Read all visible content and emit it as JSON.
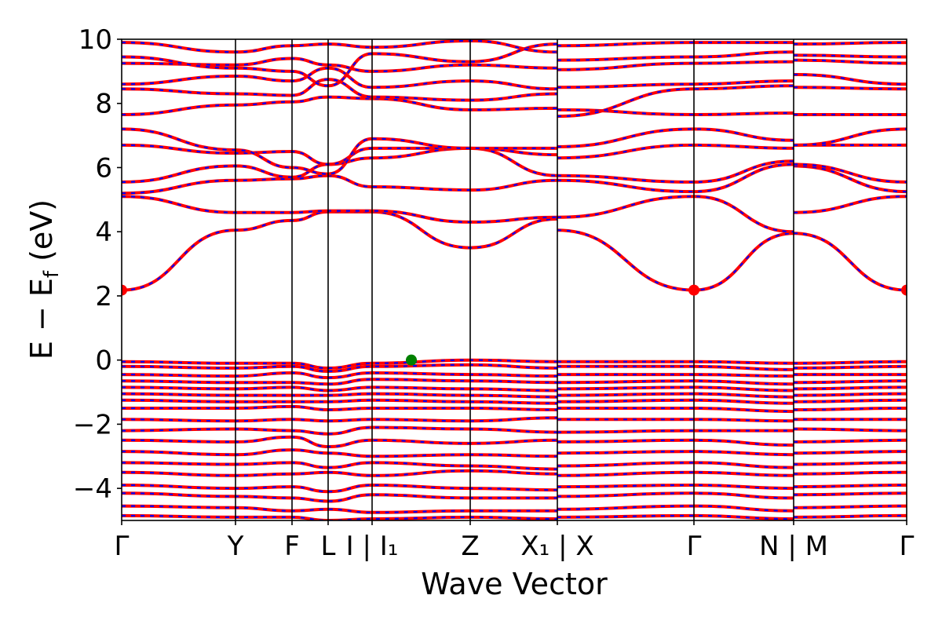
{
  "chart_data": {
    "type": "line",
    "title": "",
    "xlabel": "Wave Vector",
    "ylabel": "E − E",
    "ylabel_subscript": "f",
    "ylabel_unit": " (eV)",
    "ylim": [
      -5,
      10
    ],
    "yticks": [
      -4,
      -2,
      0,
      2,
      4,
      6,
      8,
      10
    ],
    "ytick_labels": [
      "−4",
      "−2",
      "0",
      "2",
      "4",
      "6",
      "8",
      "10"
    ],
    "kpath": [
      {
        "x": 0.0,
        "label": "Γ"
      },
      {
        "x": 0.145,
        "label": "Y"
      },
      {
        "x": 0.217,
        "label": "F"
      },
      {
        "x": 0.263,
        "label": "L"
      },
      {
        "x": 0.319,
        "label": "I | I₁"
      },
      {
        "x": 0.444,
        "label": "Z"
      },
      {
        "x": 0.555,
        "label": "X₁ | X"
      },
      {
        "x": 0.729,
        "label": "Γ"
      },
      {
        "x": 0.856,
        "label": "N | M"
      },
      {
        "x": 1.0,
        "label": "Γ"
      }
    ],
    "xlim": [
      0,
      1
    ],
    "series_colors": {
      "solid": "#ff0000",
      "dashed": "#0000ff"
    },
    "markers": [
      {
        "name": "CBM",
        "x": 0.0,
        "y": 2.18,
        "color": "#ff0000"
      },
      {
        "name": "CBM",
        "x": 0.729,
        "y": 2.18,
        "color": "#ff0000"
      },
      {
        "name": "CBM",
        "x": 1.0,
        "y": 2.18,
        "color": "#ff0000"
      },
      {
        "name": "VBM",
        "x": 0.369,
        "y": 0.0,
        "color": "#008000"
      }
    ],
    "bands": [
      {
        "x": [
          0,
          0.145,
          0.217,
          0.263,
          0.319,
          0.444,
          0.555,
          0.555,
          0.729,
          0.856,
          0.856,
          1.0
        ],
        "y": [
          2.18,
          4.05,
          4.35,
          4.62,
          4.62,
          3.5,
          4.4,
          4.05,
          2.18,
          3.95,
          3.95,
          2.18
        ]
      },
      {
        "x": [
          0,
          0.145,
          0.217,
          0.263,
          0.319,
          0.444,
          0.555,
          0.555,
          0.729,
          0.856,
          0.856,
          1.0
        ],
        "y": [
          5.1,
          4.6,
          4.6,
          4.65,
          4.65,
          4.3,
          4.45,
          4.45,
          5.1,
          4.0,
          4.6,
          5.1
        ]
      },
      {
        "x": [
          0,
          0.145,
          0.217,
          0.263,
          0.319,
          0.444,
          0.555,
          0.555,
          0.729,
          0.856,
          0.856,
          1.0
        ],
        "y": [
          5.2,
          5.6,
          5.65,
          5.75,
          5.4,
          5.3,
          5.6,
          5.6,
          5.25,
          6.1,
          6.05,
          5.25
        ]
      },
      {
        "x": [
          0,
          0.145,
          0.217,
          0.263,
          0.319,
          0.444,
          0.555,
          0.555,
          0.729,
          0.856,
          0.856,
          1.0
        ],
        "y": [
          5.55,
          6.05,
          5.7,
          6.1,
          6.3,
          6.6,
          5.75,
          5.75,
          5.55,
          6.2,
          6.1,
          5.55
        ]
      },
      {
        "x": [
          0,
          0.145,
          0.217,
          0.263,
          0.319,
          0.444,
          0.555,
          0.555,
          0.729,
          0.856,
          0.856,
          1.0
        ],
        "y": [
          6.7,
          6.45,
          6.5,
          6.1,
          6.6,
          6.6,
          6.4,
          6.3,
          6.7,
          6.6,
          6.7,
          6.7
        ]
      },
      {
        "x": [
          0,
          0.145,
          0.217,
          0.263,
          0.319,
          0.444,
          0.555,
          0.555,
          0.729,
          0.856,
          0.856,
          1.0
        ],
        "y": [
          7.2,
          6.55,
          6.0,
          5.8,
          6.9,
          6.6,
          6.6,
          6.65,
          7.2,
          6.85,
          6.7,
          7.2
        ]
      },
      {
        "x": [
          0,
          0.145,
          0.217,
          0.263,
          0.319,
          0.444,
          0.555,
          0.555,
          0.729,
          0.856,
          0.856,
          1.0
        ],
        "y": [
          7.65,
          7.95,
          8.05,
          8.2,
          8.15,
          7.8,
          7.85,
          7.8,
          7.65,
          7.7,
          7.65,
          7.65
        ]
      },
      {
        "x": [
          0,
          0.145,
          0.217,
          0.263,
          0.319,
          0.444,
          0.555,
          0.555,
          0.729,
          0.856,
          0.856,
          1.0
        ],
        "y": [
          8.45,
          8.3,
          8.25,
          8.75,
          8.2,
          8.1,
          8.3,
          7.6,
          8.45,
          8.55,
          8.5,
          8.45
        ]
      },
      {
        "x": [
          0,
          0.145,
          0.217,
          0.263,
          0.319,
          0.444,
          0.555,
          0.555,
          0.729,
          0.856,
          0.856,
          1.0
        ],
        "y": [
          8.6,
          8.85,
          8.7,
          9.1,
          8.5,
          8.7,
          8.45,
          8.5,
          8.6,
          8.7,
          8.9,
          8.6
        ]
      },
      {
        "x": [
          0,
          0.145,
          0.217,
          0.263,
          0.319,
          0.444,
          0.555,
          0.555,
          0.729,
          0.856,
          0.856,
          1.0
        ],
        "y": [
          9.25,
          9.2,
          9.4,
          9.2,
          9.0,
          9.2,
          9.1,
          9.05,
          9.25,
          9.3,
          9.35,
          9.25
        ]
      },
      {
        "x": [
          0,
          0.145,
          0.217,
          0.263,
          0.319,
          0.444,
          0.555,
          0.555,
          0.729,
          0.856,
          0.856,
          1.0
        ],
        "y": [
          9.45,
          9.1,
          9.0,
          8.55,
          9.55,
          9.3,
          9.85,
          9.35,
          9.45,
          9.6,
          9.5,
          9.45
        ]
      },
      {
        "x": [
          0,
          0.145,
          0.217,
          0.263,
          0.319,
          0.444,
          0.555,
          0.555,
          0.729,
          0.856,
          0.856,
          1.0
        ],
        "y": [
          9.9,
          9.6,
          9.8,
          9.85,
          9.75,
          9.95,
          9.6,
          9.8,
          9.9,
          9.9,
          9.85,
          9.9
        ]
      },
      {
        "x": [
          0,
          0.145,
          0.217,
          0.263,
          0.319,
          0.444,
          0.555,
          0.555,
          0.729,
          0.856,
          0.856,
          1.0
        ],
        "y": [
          -0.05,
          -0.1,
          -0.1,
          -0.25,
          -0.1,
          0.0,
          -0.05,
          -0.05,
          -0.05,
          -0.1,
          -0.1,
          -0.05
        ]
      },
      {
        "x": [
          0,
          0.145,
          0.217,
          0.263,
          0.319,
          0.444,
          0.555,
          0.555,
          0.729,
          0.856,
          0.856,
          1.0
        ],
        "y": [
          -0.2,
          -0.25,
          -0.2,
          -0.35,
          -0.2,
          -0.15,
          -0.25,
          -0.2,
          -0.2,
          -0.3,
          -0.25,
          -0.2
        ]
      },
      {
        "x": [
          0,
          0.145,
          0.217,
          0.263,
          0.319,
          0.444,
          0.555,
          0.555,
          0.729,
          0.856,
          0.856,
          1.0
        ],
        "y": [
          -0.45,
          -0.5,
          -0.4,
          -0.55,
          -0.4,
          -0.45,
          -0.5,
          -0.45,
          -0.45,
          -0.5,
          -0.45,
          -0.45
        ]
      },
      {
        "x": [
          0,
          0.145,
          0.217,
          0.263,
          0.319,
          0.444,
          0.555,
          0.555,
          0.729,
          0.856,
          0.856,
          1.0
        ],
        "y": [
          -0.65,
          -0.7,
          -0.7,
          -0.75,
          -0.6,
          -0.65,
          -0.7,
          -0.7,
          -0.65,
          -0.75,
          -0.7,
          -0.65
        ]
      },
      {
        "x": [
          0,
          0.145,
          0.217,
          0.263,
          0.319,
          0.444,
          0.555,
          0.555,
          0.729,
          0.856,
          0.856,
          1.0
        ],
        "y": [
          -0.85,
          -0.9,
          -0.85,
          -0.95,
          -0.85,
          -0.9,
          -0.95,
          -0.9,
          -0.85,
          -0.95,
          -0.9,
          -0.85
        ]
      },
      {
        "x": [
          0,
          0.145,
          0.217,
          0.263,
          0.319,
          0.444,
          0.555,
          0.555,
          0.729,
          0.856,
          0.856,
          1.0
        ],
        "y": [
          -1.05,
          -1.1,
          -1.1,
          -1.1,
          -1.05,
          -1.1,
          -1.15,
          -1.1,
          -1.05,
          -1.15,
          -1.1,
          -1.05
        ]
      },
      {
        "x": [
          0,
          0.145,
          0.217,
          0.263,
          0.319,
          0.444,
          0.555,
          0.555,
          0.729,
          0.856,
          0.856,
          1.0
        ],
        "y": [
          -1.25,
          -1.3,
          -1.3,
          -1.3,
          -1.25,
          -1.3,
          -1.35,
          -1.3,
          -1.25,
          -1.35,
          -1.3,
          -1.25
        ]
      },
      {
        "x": [
          0,
          0.145,
          0.217,
          0.263,
          0.319,
          0.444,
          0.555,
          0.555,
          0.729,
          0.856,
          0.856,
          1.0
        ],
        "y": [
          -1.5,
          -1.5,
          -1.45,
          -1.55,
          -1.5,
          -1.5,
          -1.55,
          -1.5,
          -1.5,
          -1.6,
          -1.55,
          -1.5
        ]
      },
      {
        "x": [
          0,
          0.145,
          0.217,
          0.263,
          0.319,
          0.444,
          0.555,
          0.555,
          0.729,
          0.856,
          0.856,
          1.0
        ],
        "y": [
          -1.85,
          -1.9,
          -1.85,
          -1.9,
          -1.85,
          -1.9,
          -1.8,
          -1.85,
          -1.85,
          -1.9,
          -1.85,
          -1.85
        ]
      },
      {
        "x": [
          0,
          0.145,
          0.217,
          0.263,
          0.319,
          0.444,
          0.555,
          0.555,
          0.729,
          0.856,
          0.856,
          1.0
        ],
        "y": [
          -2.2,
          -2.15,
          -2.2,
          -2.3,
          -2.1,
          -2.15,
          -2.25,
          -2.25,
          -2.2,
          -2.2,
          -2.15,
          -2.2
        ]
      },
      {
        "x": [
          0,
          0.145,
          0.217,
          0.263,
          0.319,
          0.444,
          0.555,
          0.555,
          0.729,
          0.856,
          0.856,
          1.0
        ],
        "y": [
          -2.5,
          -2.55,
          -2.4,
          -2.7,
          -2.5,
          -2.6,
          -2.5,
          -2.55,
          -2.5,
          -2.65,
          -2.55,
          -2.5
        ]
      },
      {
        "x": [
          0,
          0.145,
          0.217,
          0.263,
          0.319,
          0.444,
          0.555,
          0.555,
          0.729,
          0.856,
          0.856,
          1.0
        ],
        "y": [
          -2.85,
          -2.95,
          -2.8,
          -2.9,
          -3.0,
          -2.95,
          -3.0,
          -2.9,
          -2.85,
          -2.95,
          -2.9,
          -2.85
        ]
      },
      {
        "x": [
          0,
          0.145,
          0.217,
          0.263,
          0.319,
          0.444,
          0.555,
          0.555,
          0.729,
          0.856,
          0.856,
          1.0
        ],
        "y": [
          -3.2,
          -3.25,
          -3.2,
          -3.35,
          -3.2,
          -3.3,
          -3.4,
          -3.3,
          -3.2,
          -3.35,
          -3.25,
          -3.2
        ]
      },
      {
        "x": [
          0,
          0.145,
          0.217,
          0.263,
          0.319,
          0.444,
          0.555,
          0.555,
          0.729,
          0.856,
          0.856,
          1.0
        ],
        "y": [
          -3.5,
          -3.6,
          -3.55,
          -3.5,
          -3.6,
          -3.45,
          -3.55,
          -3.6,
          -3.5,
          -3.6,
          -3.55,
          -3.5
        ]
      },
      {
        "x": [
          0,
          0.145,
          0.217,
          0.263,
          0.319,
          0.444,
          0.555,
          0.555,
          0.729,
          0.856,
          0.856,
          1.0
        ],
        "y": [
          -3.9,
          -4.0,
          -3.95,
          -4.1,
          -3.9,
          -4.0,
          -4.05,
          -3.95,
          -3.9,
          -4.0,
          -3.95,
          -3.9
        ]
      },
      {
        "x": [
          0,
          0.145,
          0.217,
          0.263,
          0.319,
          0.444,
          0.555,
          0.555,
          0.729,
          0.856,
          0.856,
          1.0
        ],
        "y": [
          -4.15,
          -4.25,
          -4.3,
          -4.4,
          -4.2,
          -4.3,
          -4.3,
          -4.25,
          -4.15,
          -4.3,
          -4.2,
          -4.15
        ]
      },
      {
        "x": [
          0,
          0.145,
          0.217,
          0.263,
          0.319,
          0.444,
          0.555,
          0.555,
          0.729,
          0.856,
          0.856,
          1.0
        ],
        "y": [
          -4.55,
          -4.6,
          -4.7,
          -4.65,
          -4.75,
          -4.7,
          -4.7,
          -4.65,
          -4.55,
          -4.7,
          -4.6,
          -4.55
        ]
      },
      {
        "x": [
          0,
          0.145,
          0.217,
          0.263,
          0.319,
          0.444,
          0.555,
          0.555,
          0.729,
          0.856,
          0.856,
          1.0
        ],
        "y": [
          -4.85,
          -4.9,
          -4.9,
          -5.0,
          -4.95,
          -4.9,
          -4.95,
          -4.9,
          -4.85,
          -4.95,
          -4.9,
          -4.85
        ]
      }
    ]
  }
}
